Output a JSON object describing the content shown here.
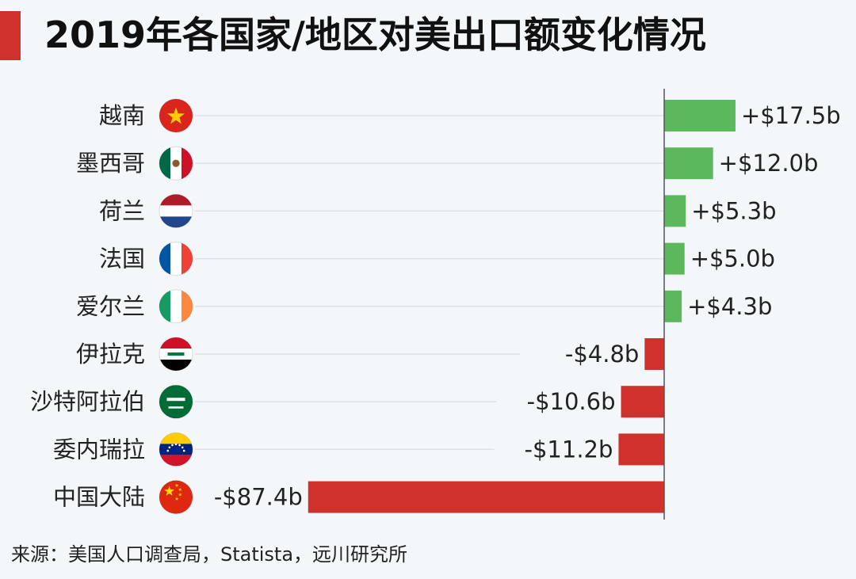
{
  "title": "2019年各国家/地区对美出口额变化情况",
  "source": "来源：美国人口调查局，Statista，远川研究所",
  "colors": {
    "positive": "#5cb85c",
    "negative": "#d0312d",
    "accent": "#d0312d"
  },
  "chart_data": {
    "type": "bar",
    "orientation": "horizontal",
    "unit": "b",
    "categories": [
      "越南",
      "墨西哥",
      "荷兰",
      "法国",
      "爱尔兰",
      "伊拉克",
      "沙特阿拉伯",
      "委内瑞拉",
      "中国大陆"
    ],
    "values": [
      17.5,
      12.0,
      5.3,
      5.0,
      4.3,
      -4.8,
      -10.6,
      -11.2,
      -87.4
    ],
    "labels": [
      "+$17.5b",
      "+$12.0b",
      "+$5.3b",
      "+$5.0b",
      "+$4.3b",
      "-$4.8b",
      "-$10.6b",
      "-$11.2b",
      "-$87.4b"
    ],
    "flags": [
      "vietnam-flag",
      "mexico-flag",
      "netherlands-flag",
      "france-flag",
      "ireland-flag",
      "iraq-flag",
      "saudi-arabia-flag",
      "venezuela-flag",
      "china-flag"
    ],
    "xlim": [
      -87.4,
      17.5
    ],
    "grid": true
  }
}
